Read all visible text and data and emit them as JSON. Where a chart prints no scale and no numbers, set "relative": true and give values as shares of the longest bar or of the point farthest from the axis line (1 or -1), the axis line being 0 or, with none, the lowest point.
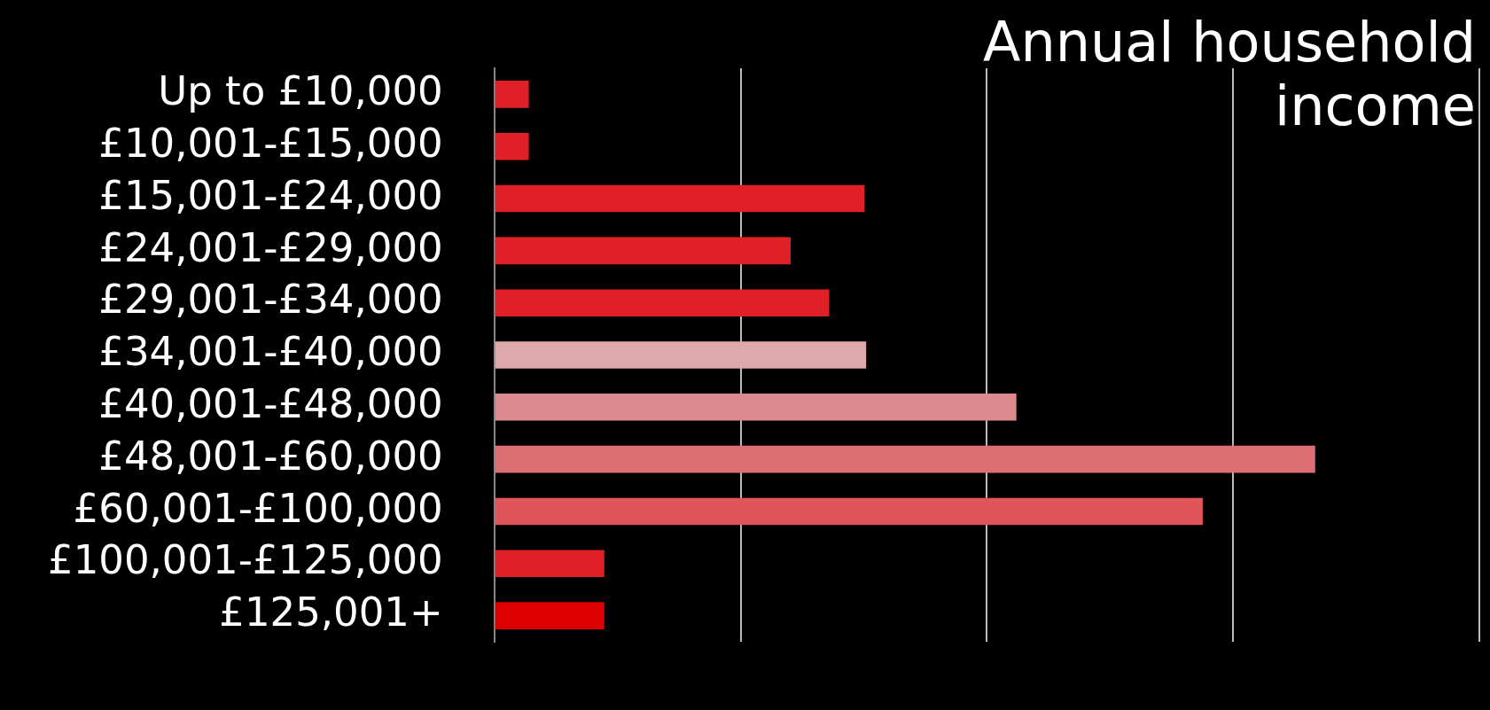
{
  "chart_data": {
    "type": "bar",
    "orientation": "horizontal",
    "relative": true,
    "title": "Annual household income",
    "grid": "x",
    "legend": false,
    "categories": [
      "Up to £10,000",
      "£10,001-£15,000",
      "£15,001-£24,000",
      "£24,001-£29,000",
      "£29,001-£34,000",
      "£34,001-£40,000",
      "£40,001-£48,000",
      "£48,001-£60,000",
      "£60,001-£100,000",
      "£100,001-£125,000",
      "£125,001+"
    ],
    "values": [
      0.042,
      0.042,
      0.451,
      0.361,
      0.408,
      0.453,
      0.636,
      1,
      0.863,
      0.134,
      0.134
    ],
    "colors": [
      "#df2027",
      "#df2027",
      "#df2027",
      "#df2027",
      "#df2027",
      "#dfa9ab",
      "#dc8a8d",
      "#dd6f74",
      "#df555a",
      "#df2027",
      "#dc0000"
    ]
  }
}
